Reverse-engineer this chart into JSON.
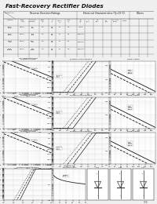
{
  "title": "Fast-Recovery Rectifier Diodes",
  "bg_color": "#f2f2f2",
  "title_bg": "#d4d4d4",
  "section_labels": [
    "ES1A  ES1B",
    "ES1C  ES1D",
    "ES1G  ES1J",
    "ES1Z  ES1ZZ"
  ],
  "section_label_colors": [
    "#222222",
    "#222222",
    "#222222",
    "#222222"
  ],
  "page_num": "355"
}
